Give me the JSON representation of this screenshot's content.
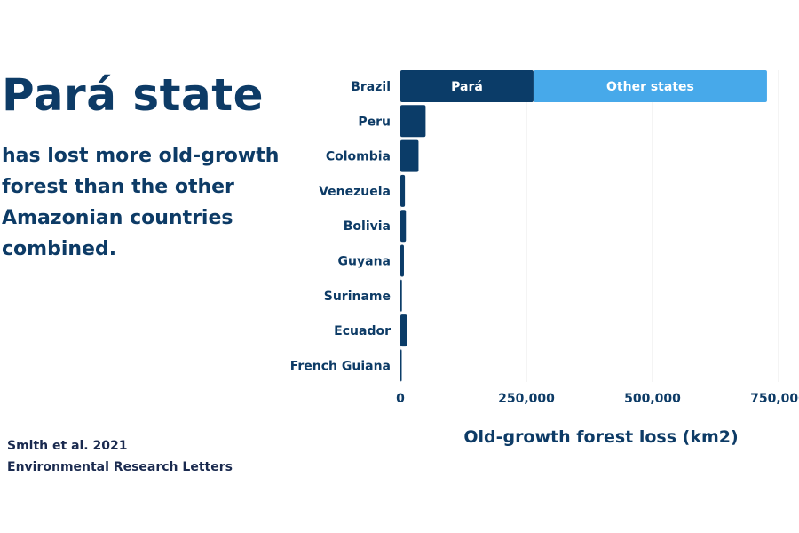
{
  "headline": "Pará state",
  "subtext": "has lost more old-growth forest than the other Amazonian countries combined.",
  "source": {
    "author": "Smith et al. 2021",
    "journal": "Environmental Research Letters"
  },
  "colors": {
    "text": "#0d3b66",
    "bar": "#0b3c68",
    "other_states": "#47a9ea",
    "grid": "#e8e8e8"
  },
  "chart_data": {
    "type": "bar",
    "orientation": "horizontal",
    "stacked": true,
    "categories": [
      "Brazil",
      "Peru",
      "Colombia",
      "Venezuela",
      "Bolivia",
      "Guyana",
      "Suriname",
      "Ecuador",
      "French Guiana"
    ],
    "series": [
      {
        "name": "Pará",
        "values": [
          264000,
          50000,
          36000,
          9000,
          11000,
          7000,
          3000,
          13000,
          1500
        ]
      },
      {
        "name": "Other states",
        "values": [
          463000,
          0,
          0,
          0,
          0,
          0,
          0,
          0,
          0
        ]
      }
    ],
    "xlabel": "Old-growth forest loss (km2)",
    "xlim": [
      0,
      750000
    ],
    "xticks": [
      0,
      250000,
      500000,
      750000
    ],
    "xtick_labels": [
      "0",
      "250,000",
      "500,000",
      "750,000"
    ],
    "grid": true
  }
}
